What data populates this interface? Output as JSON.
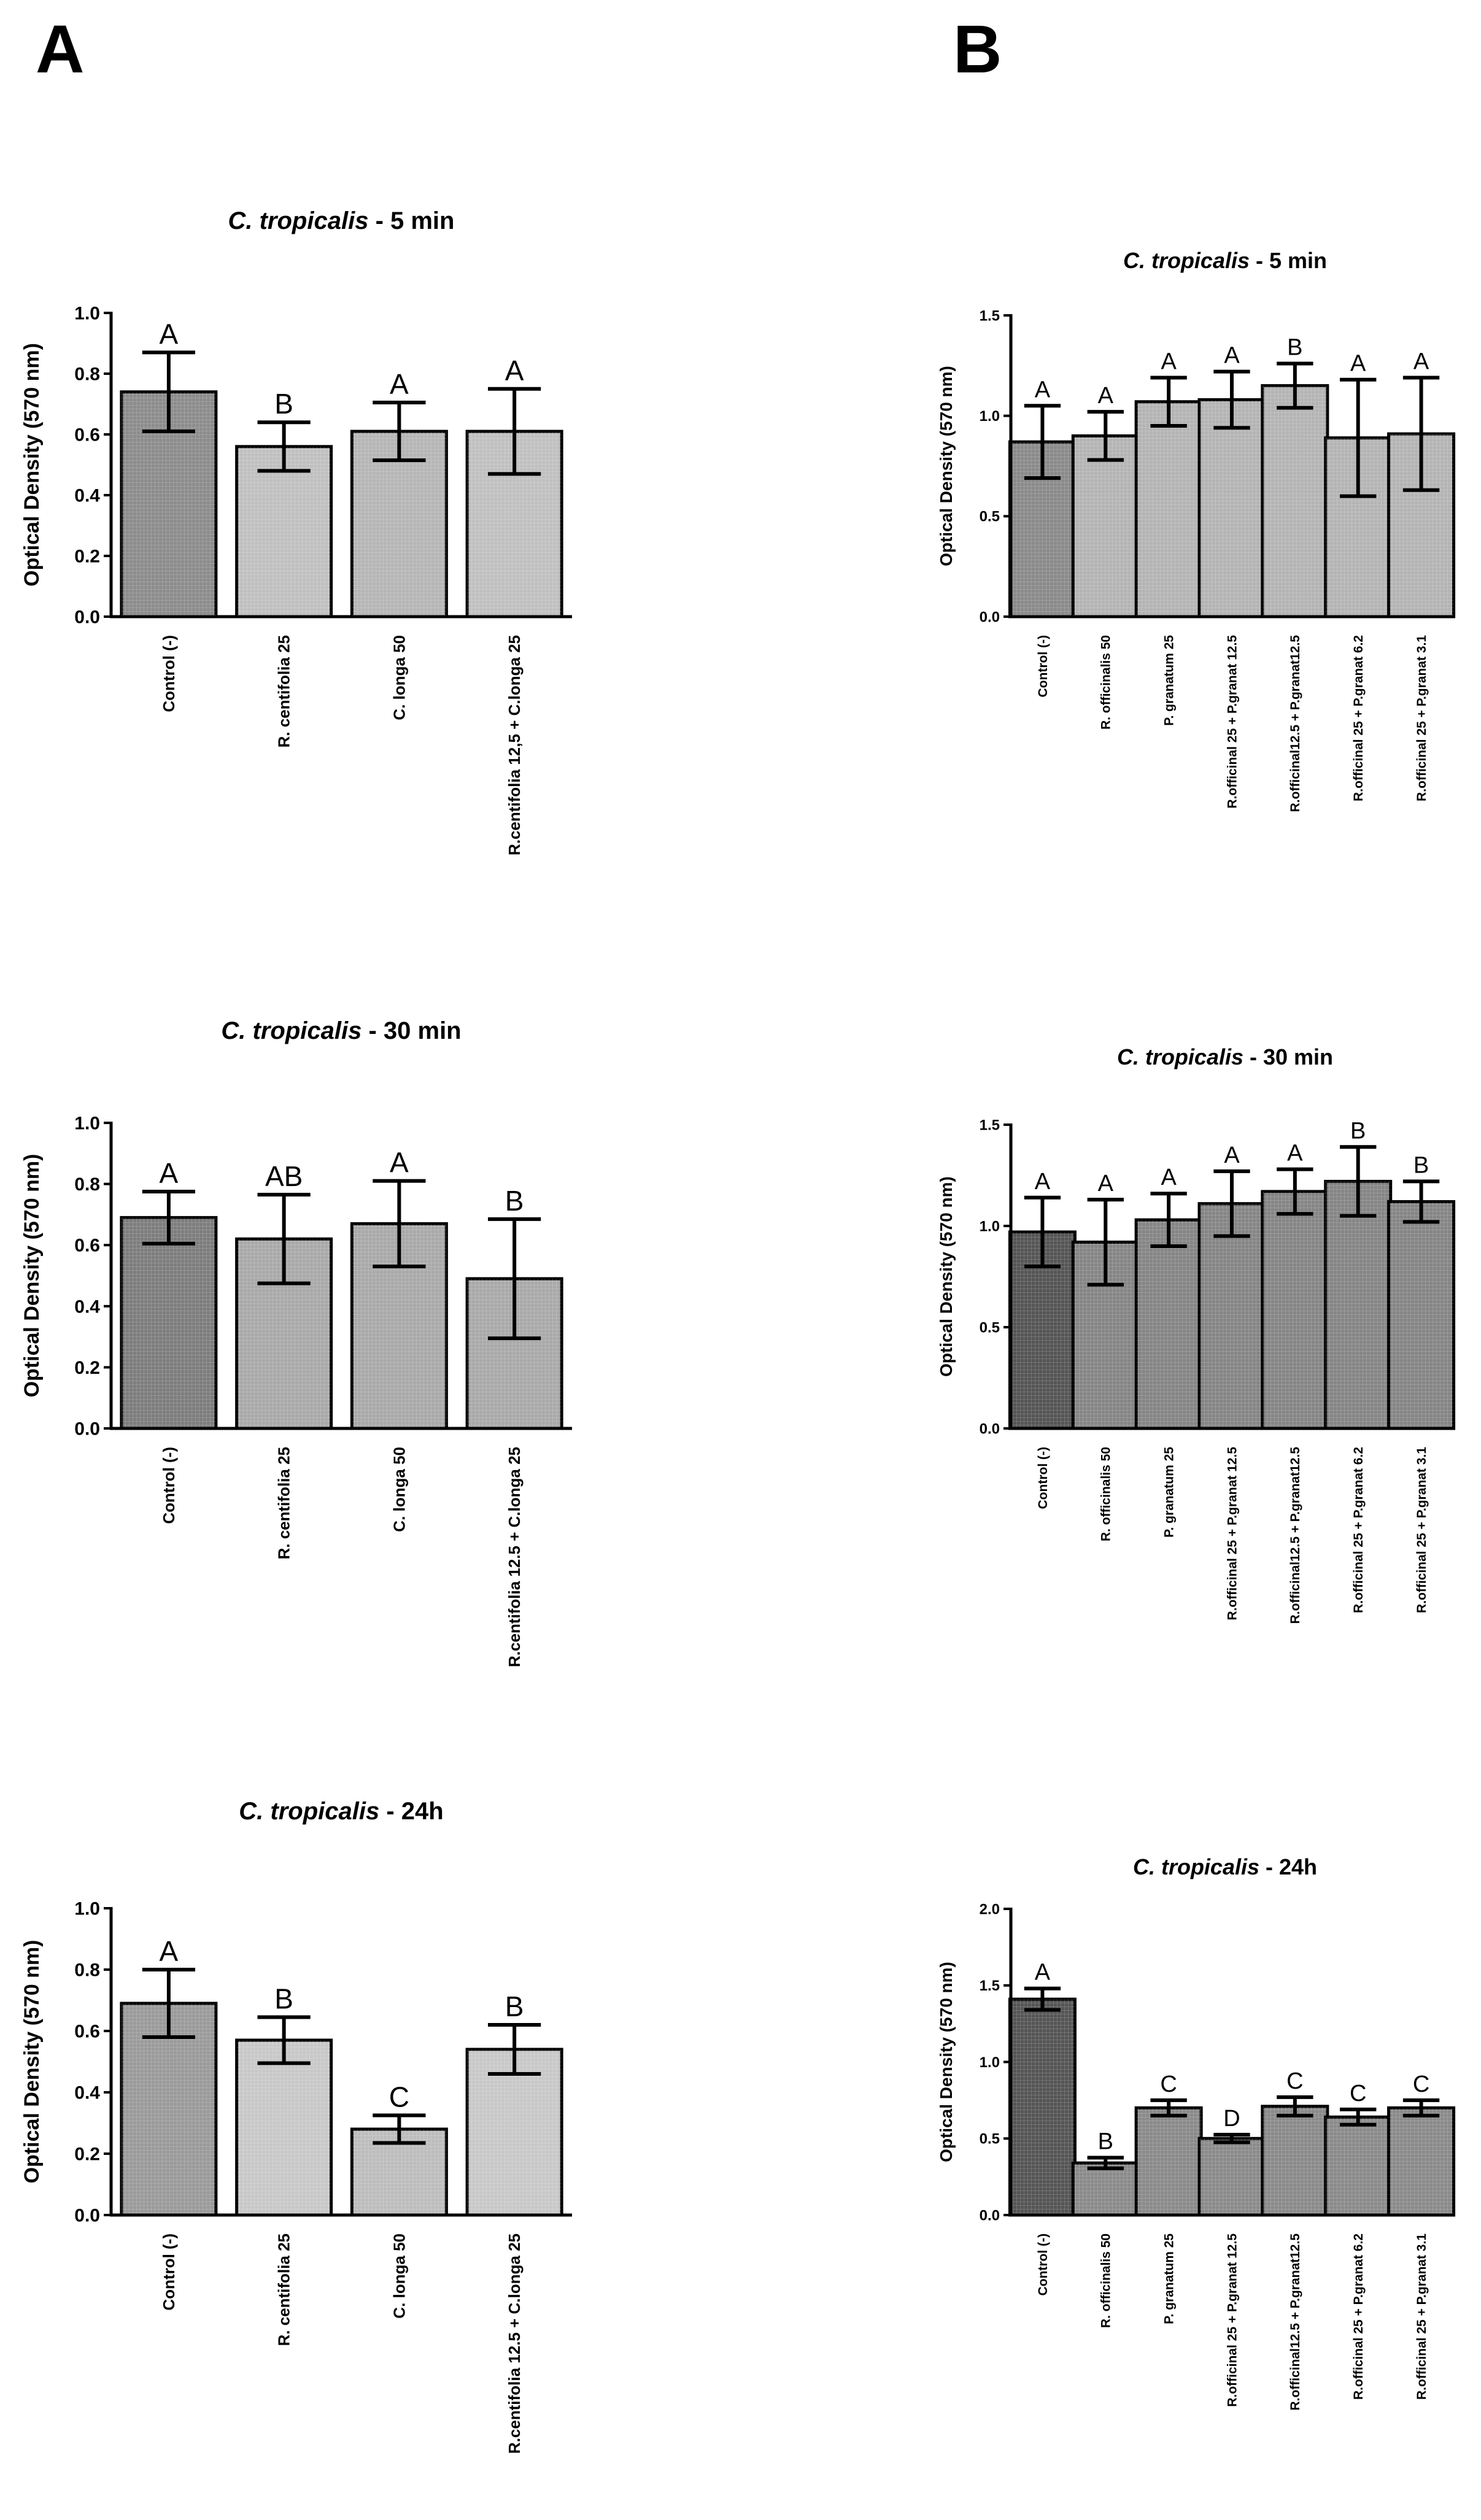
{
  "figure": {
    "panel_labels": [
      "A",
      "B"
    ]
  },
  "chart_data": [
    {
      "type": "bar",
      "title_italic": "C. tropicalis",
      "title_rest": " - 5 min",
      "ylabel": "Optical Density (570 nm)",
      "xlabel": "",
      "ylim": [
        0,
        1.0
      ],
      "yticks": [
        "0.0",
        "0.2",
        "0.4",
        "0.6",
        "0.8",
        "1.0"
      ],
      "categories": [
        "Control (-)",
        "R. centifolia 25",
        "C. longa 50",
        "R.centifolia 12,5 + C.longa 25"
      ],
      "values": [
        0.74,
        0.56,
        0.61,
        0.61
      ],
      "errors": [
        0.13,
        0.08,
        0.095,
        0.14
      ],
      "letters": [
        "A",
        "B",
        "A",
        "A"
      ],
      "grid": false,
      "colors": [
        "#8c8c8c",
        "#c0c0c0",
        "#b6b6b6",
        "#c0c0c0"
      ]
    },
    {
      "type": "bar",
      "title_italic": "C. tropicalis",
      "title_rest": " - 5 min",
      "ylabel": "Optical Density (570 nm)",
      "xlabel": "",
      "ylim": [
        0,
        1.5
      ],
      "yticks": [
        "0.0",
        "0.5",
        "1.0",
        "1.5"
      ],
      "categories": [
        "Control (-)",
        "R. officinalis 50",
        "P. granatum 25",
        "R.officinal 25 + P.granat 12.5",
        "R.officinal12.5 + P.granat12.5",
        "R.officinal 25 + P.granat 6.2",
        "R.officinal 25 + P.granat 3.1"
      ],
      "values": [
        0.87,
        0.9,
        1.07,
        1.08,
        1.15,
        0.89,
        0.91
      ],
      "errors": [
        0.18,
        0.12,
        0.12,
        0.14,
        0.11,
        0.29,
        0.28
      ],
      "letters": [
        "A",
        "A",
        "A",
        "A",
        "B",
        "A",
        "A"
      ],
      "grid": false,
      "colors": [
        "#8a8a8a",
        "#b4b4b4",
        "#b4b4b4",
        "#b4b4b4",
        "#b4b4b4",
        "#b4b4b4",
        "#b4b4b4"
      ]
    },
    {
      "type": "bar",
      "title_italic": "C. tropicalis",
      "title_rest": " - 30 min",
      "ylabel": "Optical Density (570 nm)",
      "xlabel": "",
      "ylim": [
        0,
        1.0
      ],
      "yticks": [
        "0.0",
        "0.2",
        "0.4",
        "0.6",
        "0.8",
        "1.0"
      ],
      "categories": [
        "Control (-)",
        "R. centifolia 25",
        "C. longa 50",
        "R.centifolia 12.5 + C.longa 25"
      ],
      "values": [
        0.69,
        0.62,
        0.67,
        0.49
      ],
      "errors": [
        0.085,
        0.145,
        0.14,
        0.195
      ],
      "letters": [
        "A",
        "AB",
        "A",
        "B"
      ],
      "grid": false,
      "colors": [
        "#7d7d7d",
        "#a9a9a9",
        "#a9a9a9",
        "#a9a9a9"
      ]
    },
    {
      "type": "bar",
      "title_italic": "C. tropicalis",
      "title_rest": " - 30 min",
      "ylabel": "Optical Density (570 nm)",
      "xlabel": "",
      "ylim": [
        0,
        1.5
      ],
      "yticks": [
        "0.0",
        "0.5",
        "1.0",
        "1.5"
      ],
      "categories": [
        "Control (-)",
        "R. officinalis 50",
        "P. granatum 25",
        "R.officinal 25 + P.granat 12.5",
        "R.officinal12.5 + P.granat12.5",
        "R.officinal 25 + P.granat 6.2",
        "R.officinal 25 + P.granat 3.1"
      ],
      "values": [
        0.97,
        0.92,
        1.03,
        1.11,
        1.17,
        1.22,
        1.12
      ],
      "errors": [
        0.17,
        0.21,
        0.13,
        0.16,
        0.11,
        0.17,
        0.1
      ],
      "letters": [
        "A",
        "A",
        "A",
        "A",
        "A",
        "B",
        "B"
      ],
      "grid": false,
      "colors": [
        "#555555",
        "#858585",
        "#858585",
        "#858585",
        "#858585",
        "#858585",
        "#858585"
      ]
    },
    {
      "type": "bar",
      "title_italic": "C. tropicalis",
      "title_rest": " - 24h",
      "ylabel": "Optical Density (570 nm)",
      "xlabel": "",
      "ylim": [
        0,
        1.0
      ],
      "yticks": [
        "0.0",
        "0.2",
        "0.4",
        "0.6",
        "0.8",
        "1.0"
      ],
      "categories": [
        "Control (-)",
        "R. centifolia 25",
        "C. longa 50",
        "R.centifolia 12.5 + C.longa 25"
      ],
      "values": [
        0.69,
        0.57,
        0.28,
        0.54
      ],
      "errors": [
        0.11,
        0.075,
        0.045,
        0.08
      ],
      "letters": [
        "A",
        "B",
        "C",
        "B"
      ],
      "grid": false,
      "colors": [
        "#9a9a9a",
        "#c8c8c8",
        "#bdbdbd",
        "#c8c8c8"
      ]
    },
    {
      "type": "bar",
      "title_italic": "C. tropicalis",
      "title_rest": " - 24h",
      "ylabel": "Optical Density (570 nm)",
      "xlabel": "",
      "ylim": [
        0,
        2.0
      ],
      "yticks": [
        "0.0",
        "0.5",
        "1.0",
        "1.5",
        "2.0"
      ],
      "categories": [
        "Control (-)",
        "R. officinalis 50",
        "P. granatum 25",
        "R.officinal 25 + P.granat 12.5",
        "R.officinal12.5 + P.granat12.5",
        "R.officinal 25 + P.granat 6.2",
        "R.officinal 25 + P.granat 3.1"
      ],
      "values": [
        1.41,
        0.34,
        0.7,
        0.5,
        0.71,
        0.64,
        0.7
      ],
      "errors": [
        0.07,
        0.035,
        0.05,
        0.025,
        0.06,
        0.05,
        0.05
      ],
      "letters": [
        "A",
        "B",
        "C",
        "D",
        "C",
        "C",
        "C"
      ],
      "grid": false,
      "colors": [
        "#555555",
        "#8a8a8a",
        "#8a8a8a",
        "#8a8a8a",
        "#8a8a8a",
        "#8a8a8a",
        "#8a8a8a"
      ]
    }
  ]
}
